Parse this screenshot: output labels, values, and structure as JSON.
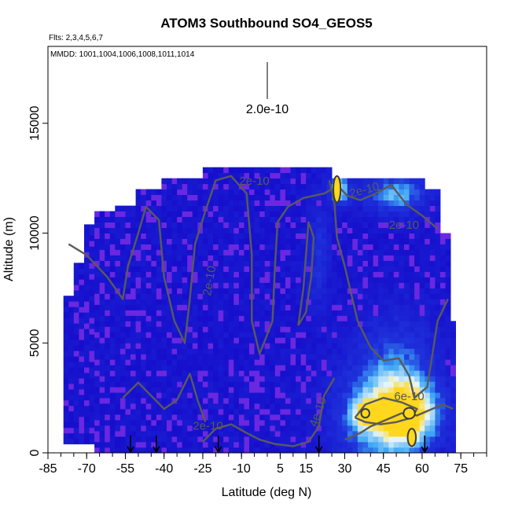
{
  "chart_data": {
    "type": "heatmap",
    "title": "ATOM3 Southbound SO4_GEOS5",
    "flights_note": "Flts: 2,3,4,5,6,7",
    "dates_note": "MMDD: 1001,1004,1006,1008,1011,1014",
    "xlabel": "Latitude (deg N)",
    "ylabel": "Altitude (m)",
    "xlim": [
      -85,
      85
    ],
    "ylim": [
      0,
      18500
    ],
    "x_ticks": [
      -85,
      -70,
      -55,
      -40,
      -25,
      -10,
      5,
      15,
      30,
      45,
      60,
      75
    ],
    "x_minor_step": 5,
    "y_ticks": [
      0,
      5000,
      10000,
      15000
    ],
    "legend_scale_label": "2.0e-10",
    "contour_labels": [
      {
        "text": "2e-10",
        "x": -5,
        "y": 12200,
        "angle": 0
      },
      {
        "text": "2e-10",
        "x": -21,
        "y": 7800,
        "angle": -80
      },
      {
        "text": "2e-10",
        "x": -23,
        "y": 1050,
        "angle": 0
      },
      {
        "text": "2e-10",
        "x": 38,
        "y": 11800,
        "angle": -15
      },
      {
        "text": "2e-10",
        "x": 53,
        "y": 10200,
        "angle": 0
      },
      {
        "text": "4e-10",
        "x": 21,
        "y": 1800,
        "angle": -70
      },
      {
        "text": "6e-10",
        "x": 55,
        "y": 2400,
        "angle": 0
      }
    ],
    "flight_arrows_lat": [
      -53,
      -43,
      -19,
      20,
      61
    ],
    "colors": {
      "low": "#1405c8",
      "purple": "#6a28e0",
      "mid": "#3fa8f5",
      "high": "#e6f6ff",
      "peak": "#ffd71c",
      "contour": "#5a5a5a"
    }
  }
}
